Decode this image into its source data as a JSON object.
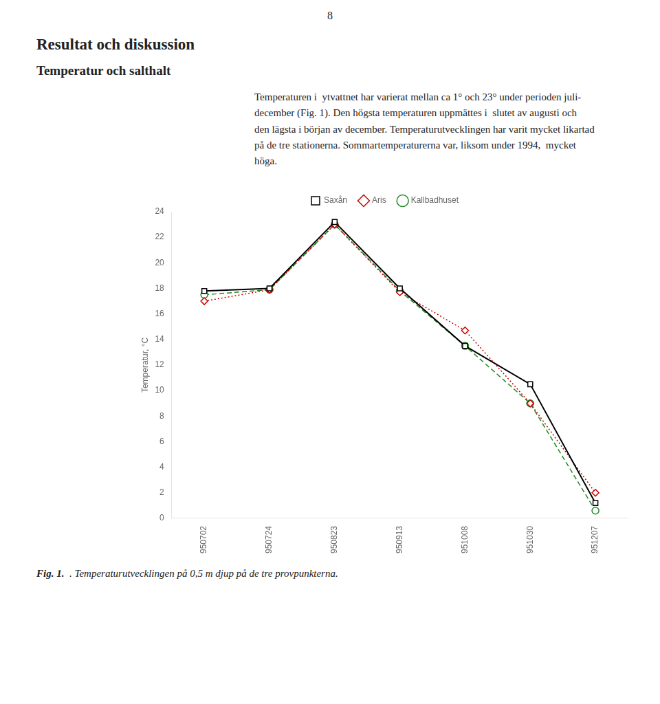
{
  "chart_data": {
    "type": "line",
    "title": "Resultat och diskussion",
    "subtitle": "Temperatur och salthalt",
    "annotations": [
      "8",
      "Temperaturen i  ytvattnet har varierat mellan ca 1° och 23° under perioden juli-\ndecember (Fig. 1). Den högsta temperaturen uppmättes i  slutet av augusti och\nden lägsta i början av december. Temperaturutvecklingen har varit mycket likartad\npå de tre stationerna. Sommartemperaturerna var, liksom under 1994,  mycket\nhöga.",
      "Fig.",
      "1.",
      ". Temperaturutvecklingen på 0,5 m djup på de tre provpunkterna."
    ],
    "ylabel": "Temperatur, °C",
    "categories": [
      "950702",
      "950724",
      "950823",
      "950913",
      "951008",
      "951030",
      "951207"
    ],
    "series": [
      {
        "name": "Saxån",
        "color": "#000000",
        "marker": "square",
        "line_style": "solid",
        "values": [
          17.8,
          18.0,
          23.2,
          18.0,
          13.5,
          10.5,
          1.2
        ]
      },
      {
        "name": "Aris",
        "color": "#cc0000",
        "marker": "diamond",
        "line_style": "dotted",
        "values": [
          17.0,
          17.9,
          23.0,
          17.7,
          14.7,
          9.0,
          2.0
        ]
      },
      {
        "name": "Kallbadhuset",
        "color": "#228822",
        "marker": "circle",
        "line_style": "dashed",
        "values": [
          17.5,
          17.9,
          23.0,
          17.8,
          13.5,
          9.0,
          0.6
        ]
      }
    ],
    "ylim": [
      0,
      24
    ],
    "yticks": [
      0,
      2,
      4,
      6,
      8,
      10,
      12,
      14,
      16,
      18,
      20,
      22,
      24
    ],
    "grid": false,
    "legend": "top"
  }
}
